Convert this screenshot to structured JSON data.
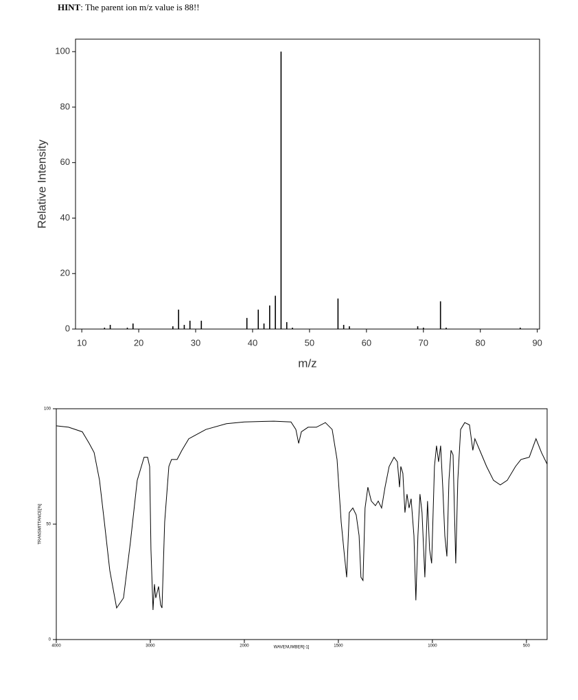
{
  "hint_label": "HINT",
  "hint_text": ":  The parent ion m/z value is 88!!",
  "chart_data": [
    {
      "type": "stem",
      "ylabel": "Relative Intensity",
      "xlabel": "m/z",
      "x": [
        14,
        15,
        18,
        19,
        26,
        27,
        28,
        29,
        31,
        39,
        41,
        42,
        43,
        44,
        45,
        46,
        47,
        55,
        56,
        57,
        69,
        70,
        73,
        74,
        87
      ],
      "values": [
        0.5,
        1.5,
        0.5,
        2,
        1,
        7,
        1.5,
        3,
        3,
        4,
        7,
        2,
        8.5,
        12,
        100,
        2.5,
        0.5,
        11,
        1.5,
        1,
        1,
        0.5,
        10,
        0.5,
        0.5
      ],
      "color": "#000000",
      "xlim": [
        8.9,
        90.4
      ],
      "ylim": [
        0,
        104.5
      ],
      "xticks": [
        10,
        20,
        30,
        40,
        50,
        60,
        70,
        80,
        90
      ],
      "yticks": [
        0,
        20,
        40,
        60,
        80,
        100
      ]
    },
    {
      "type": "line",
      "ylabel": "TRANSMITTANCE[%]",
      "xlabel": "WAVENUMBER[-1]",
      "x_reversed": true,
      "x_scale_change": {
        "at": 2000,
        "factor": 2
      },
      "x": [
        4000,
        3869,
        3723,
        3650,
        3598,
        3540,
        3489,
        3431,
        3358,
        3285,
        3212,
        3139,
        3066,
        3029,
        3007,
        2993,
        2971,
        2956,
        2942,
        2912,
        2890,
        2876,
        2847,
        2803,
        2774,
        2715,
        2664,
        2591,
        2409,
        2190,
        2000,
        1843,
        1752,
        1726,
        1711,
        1697,
        1661,
        1617,
        1569,
        1533,
        1507,
        1485,
        1471,
        1456,
        1442,
        1423,
        1405,
        1390,
        1380,
        1369,
        1358,
        1343,
        1325,
        1303,
        1288,
        1270,
        1252,
        1230,
        1204,
        1186,
        1175,
        1168,
        1157,
        1146,
        1135,
        1124,
        1113,
        1098,
        1088,
        1077,
        1066,
        1055,
        1040,
        1026,
        1015,
        1004,
        989,
        978,
        967,
        956,
        945,
        934,
        923,
        912,
        901,
        890,
        876,
        865,
        850,
        828,
        803,
        785,
        774,
        748,
        712,
        675,
        639,
        602,
        558,
        529,
        485,
        449,
        420,
        390
      ],
      "values": [
        92.6,
        92,
        90,
        85,
        81,
        69,
        51,
        30,
        13.7,
        18,
        42,
        69,
        79,
        79,
        75,
        39,
        12.8,
        24,
        18,
        23,
        15,
        13.7,
        51,
        75,
        78,
        78,
        82,
        87,
        91,
        93.5,
        94.3,
        94.6,
        94.3,
        91,
        85,
        90,
        92,
        92,
        94,
        91,
        78,
        51,
        39,
        27,
        55,
        57,
        54,
        45,
        27,
        25.6,
        57,
        66,
        60,
        58,
        60,
        57,
        66,
        75,
        79,
        77,
        66,
        75,
        72,
        55,
        63,
        57,
        61,
        45,
        17,
        45,
        63,
        55,
        27,
        60,
        39,
        33,
        75,
        84,
        77,
        84,
        66,
        45,
        36,
        69,
        82,
        80,
        33,
        69,
        91,
        94,
        93,
        82,
        87,
        82,
        75,
        69,
        67,
        69,
        75,
        78,
        79,
        87,
        81,
        76
      ],
      "color": "#000000",
      "xlim": [
        4000,
        390
      ],
      "ylim": [
        0,
        100
      ],
      "xticks": [
        4000,
        3000,
        2000,
        1500,
        1000,
        500
      ],
      "yticks": [
        0,
        50,
        100
      ]
    }
  ]
}
